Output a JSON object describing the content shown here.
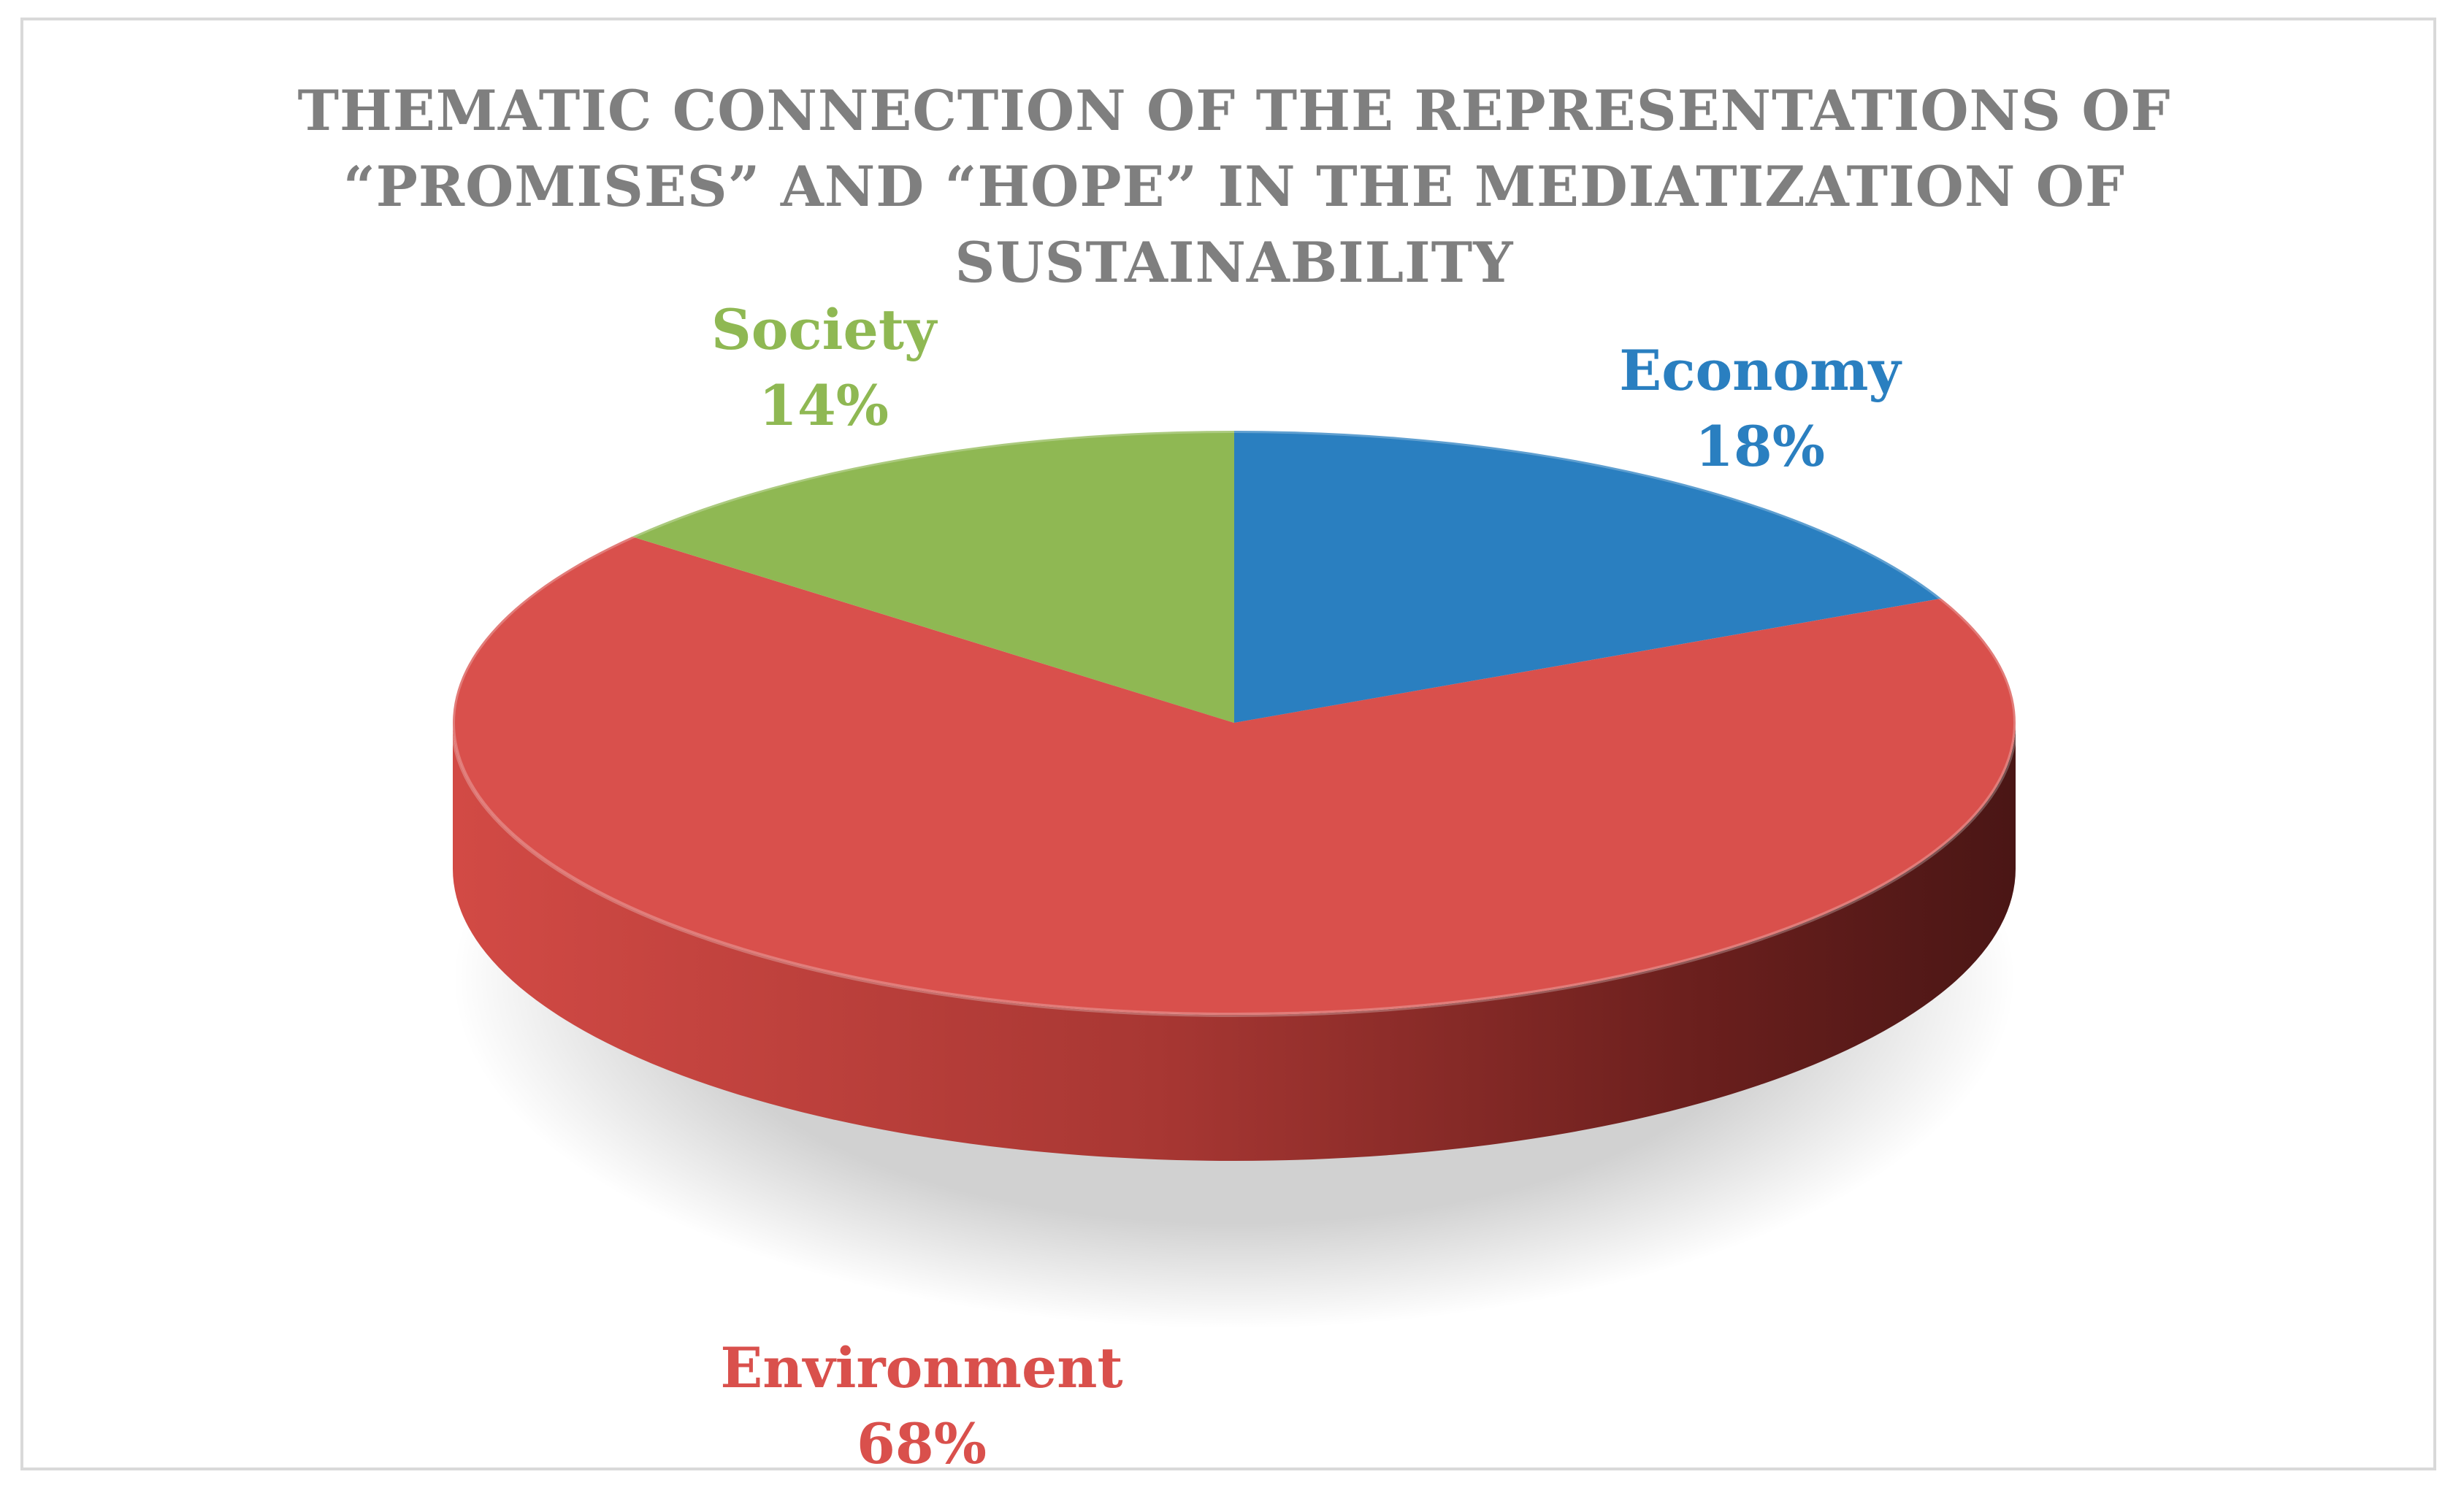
{
  "chart_data": {
    "type": "pie",
    "style": "3d",
    "title_lines": [
      "THEMATIC CONNECTION OF THE REPRESENTATIONS OF",
      "“PROMISES” AND “HOPE” IN THE MEDIATIZATION OF",
      "SUSTAINABILITY"
    ],
    "slices": [
      {
        "label": "Economy",
        "value": 18,
        "value_label": "18%",
        "color": "#2a7fc0"
      },
      {
        "label": "Environment",
        "value": 68,
        "value_label": "68%",
        "color": "#d9504c"
      },
      {
        "label": "Society",
        "value": 14,
        "value_label": "14%",
        "color": "#8fb853"
      }
    ],
    "start_angle": "12 o'clock",
    "direction": "clockwise",
    "legend": "none",
    "title_color": "#7f7f7f"
  }
}
